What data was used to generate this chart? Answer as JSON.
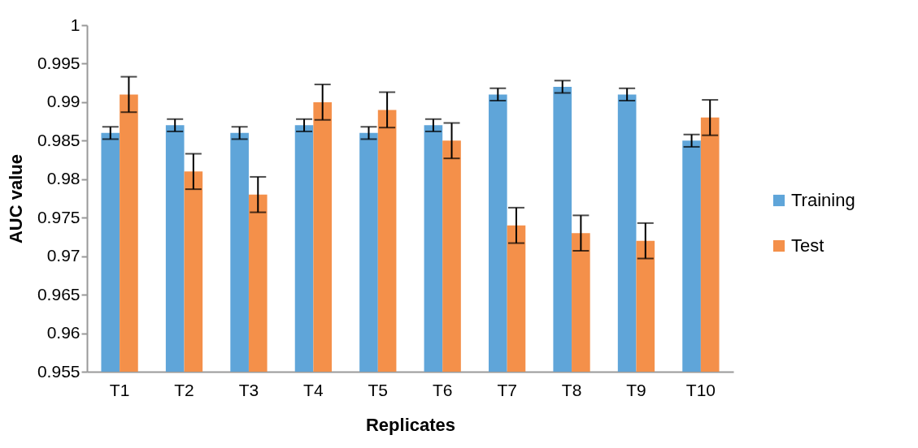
{
  "chart_data": {
    "type": "bar",
    "xlabel": "Replicates",
    "ylabel": "AUC value",
    "categories": [
      "T1",
      "T2",
      "T3",
      "T4",
      "T5",
      "T6",
      "T7",
      "T8",
      "T9",
      "T10"
    ],
    "series": [
      {
        "name": "Training",
        "color": "#5fa5d9",
        "values": [
          0.986,
          0.987,
          0.986,
          0.987,
          0.986,
          0.987,
          0.991,
          0.992,
          0.991,
          0.985
        ],
        "errors": [
          0.0008,
          0.0008,
          0.0008,
          0.0008,
          0.0008,
          0.0008,
          0.0008,
          0.0008,
          0.0008,
          0.0008
        ]
      },
      {
        "name": "Test",
        "color": "#f4904a",
        "values": [
          0.991,
          0.981,
          0.978,
          0.99,
          0.989,
          0.985,
          0.974,
          0.973,
          0.972,
          0.988
        ],
        "errors": [
          0.0023,
          0.0023,
          0.0023,
          0.0023,
          0.0023,
          0.0023,
          0.0023,
          0.0023,
          0.0023,
          0.0023
        ]
      }
    ],
    "ylim": [
      0.955,
      1
    ],
    "yticks": [
      0.955,
      0.96,
      0.965,
      0.97,
      0.975,
      0.98,
      0.985,
      0.99,
      0.995,
      1
    ],
    "grid": false,
    "legend": "right"
  }
}
